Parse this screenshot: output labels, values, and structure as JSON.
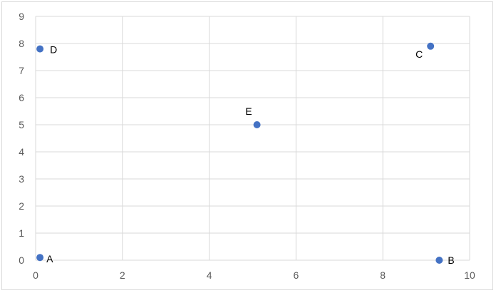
{
  "chart_data": {
    "type": "scatter",
    "title": "",
    "xlabel": "",
    "ylabel": "",
    "xlim": [
      0,
      10
    ],
    "ylim": [
      0,
      9
    ],
    "x_ticks": [
      "0",
      "2",
      "4",
      "6",
      "8",
      "10"
    ],
    "y_ticks": [
      "0",
      "1",
      "2",
      "3",
      "4",
      "5",
      "6",
      "7",
      "8",
      "9"
    ],
    "grid": true,
    "legend": "none",
    "marker_color": "#4472C4",
    "grid_color": "#d9d9d9",
    "points": [
      {
        "label": "A",
        "x": 0.1,
        "y": 0.1
      },
      {
        "label": "B",
        "x": 9.3,
        "y": 0.0
      },
      {
        "label": "C",
        "x": 9.1,
        "y": 7.9
      },
      {
        "label": "D",
        "x": 0.1,
        "y": 7.8
      },
      {
        "label": "E",
        "x": 5.1,
        "y": 5.0
      }
    ]
  }
}
